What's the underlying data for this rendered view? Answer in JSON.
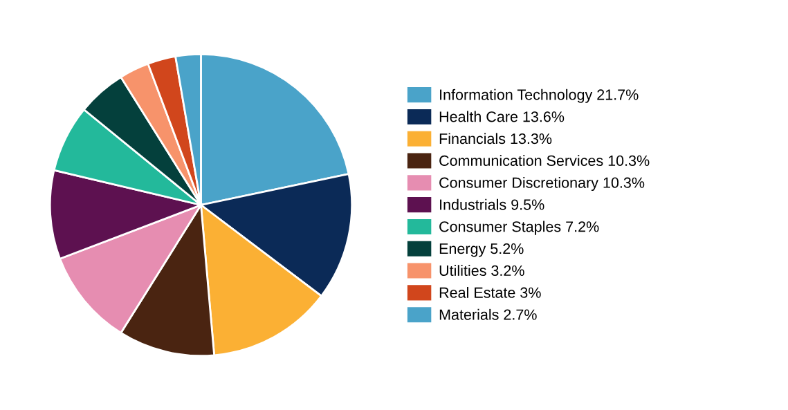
{
  "chart_data": {
    "type": "pie",
    "categories": [
      "Information Technology",
      "Health Care",
      "Financials",
      "Communication Services",
      "Consumer Discretionary",
      "Industrials",
      "Consumer Staples",
      "Energy",
      "Utilities",
      "Real Estate",
      "Materials"
    ],
    "values": [
      21.7,
      13.6,
      13.3,
      10.3,
      10.3,
      9.5,
      7.2,
      5.2,
      3.2,
      3,
      2.7
    ],
    "value_labels": [
      "21.7%",
      "13.6%",
      "13.3%",
      "10.3%",
      "10.3%",
      "9.5%",
      "7.2%",
      "5.2%",
      "3.2%",
      "3%",
      "2.7%"
    ],
    "colors": [
      "#4aa3c9",
      "#0b2a57",
      "#fbb034",
      "#4a2411",
      "#e68db1",
      "#5d1150",
      "#23b99b",
      "#04403c",
      "#f7936b",
      "#d1461c",
      "#4aa3c9"
    ],
    "legend": "right"
  }
}
